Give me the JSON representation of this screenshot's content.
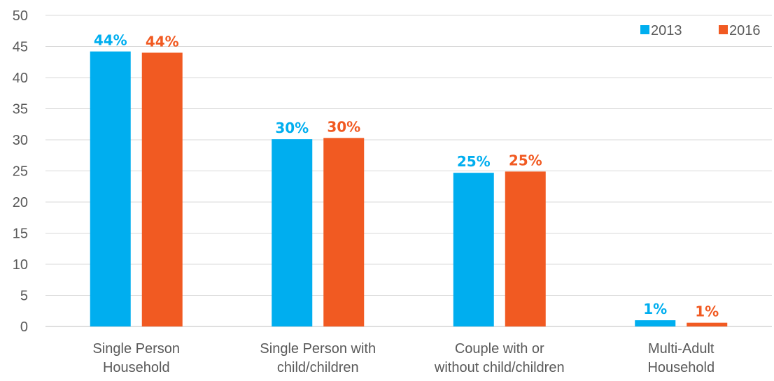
{
  "chart_data": {
    "type": "bar",
    "title": "",
    "xlabel": "",
    "ylabel": "",
    "ylim": [
      0,
      50
    ],
    "yticks": [
      0,
      5,
      10,
      15,
      20,
      25,
      30,
      35,
      40,
      45,
      50
    ],
    "grid": true,
    "legend_position": "top-right",
    "categories": [
      [
        "Single Person",
        "Household"
      ],
      [
        "Single Person with",
        "child/children"
      ],
      [
        "Couple with or",
        "without child/children"
      ],
      [
        "Multi-Adult",
        "Household"
      ]
    ],
    "series": [
      {
        "name": "2013",
        "color": "#00aeef",
        "values": [
          44.2,
          30.1,
          24.7,
          1.0
        ],
        "labels": [
          "44%",
          "30%",
          "25%",
          "1%"
        ]
      },
      {
        "name": "2016",
        "color": "#f15a22",
        "values": [
          44.0,
          30.3,
          24.9,
          0.6
        ],
        "labels": [
          "44%",
          "30%",
          "25%",
          "1%"
        ]
      }
    ]
  }
}
